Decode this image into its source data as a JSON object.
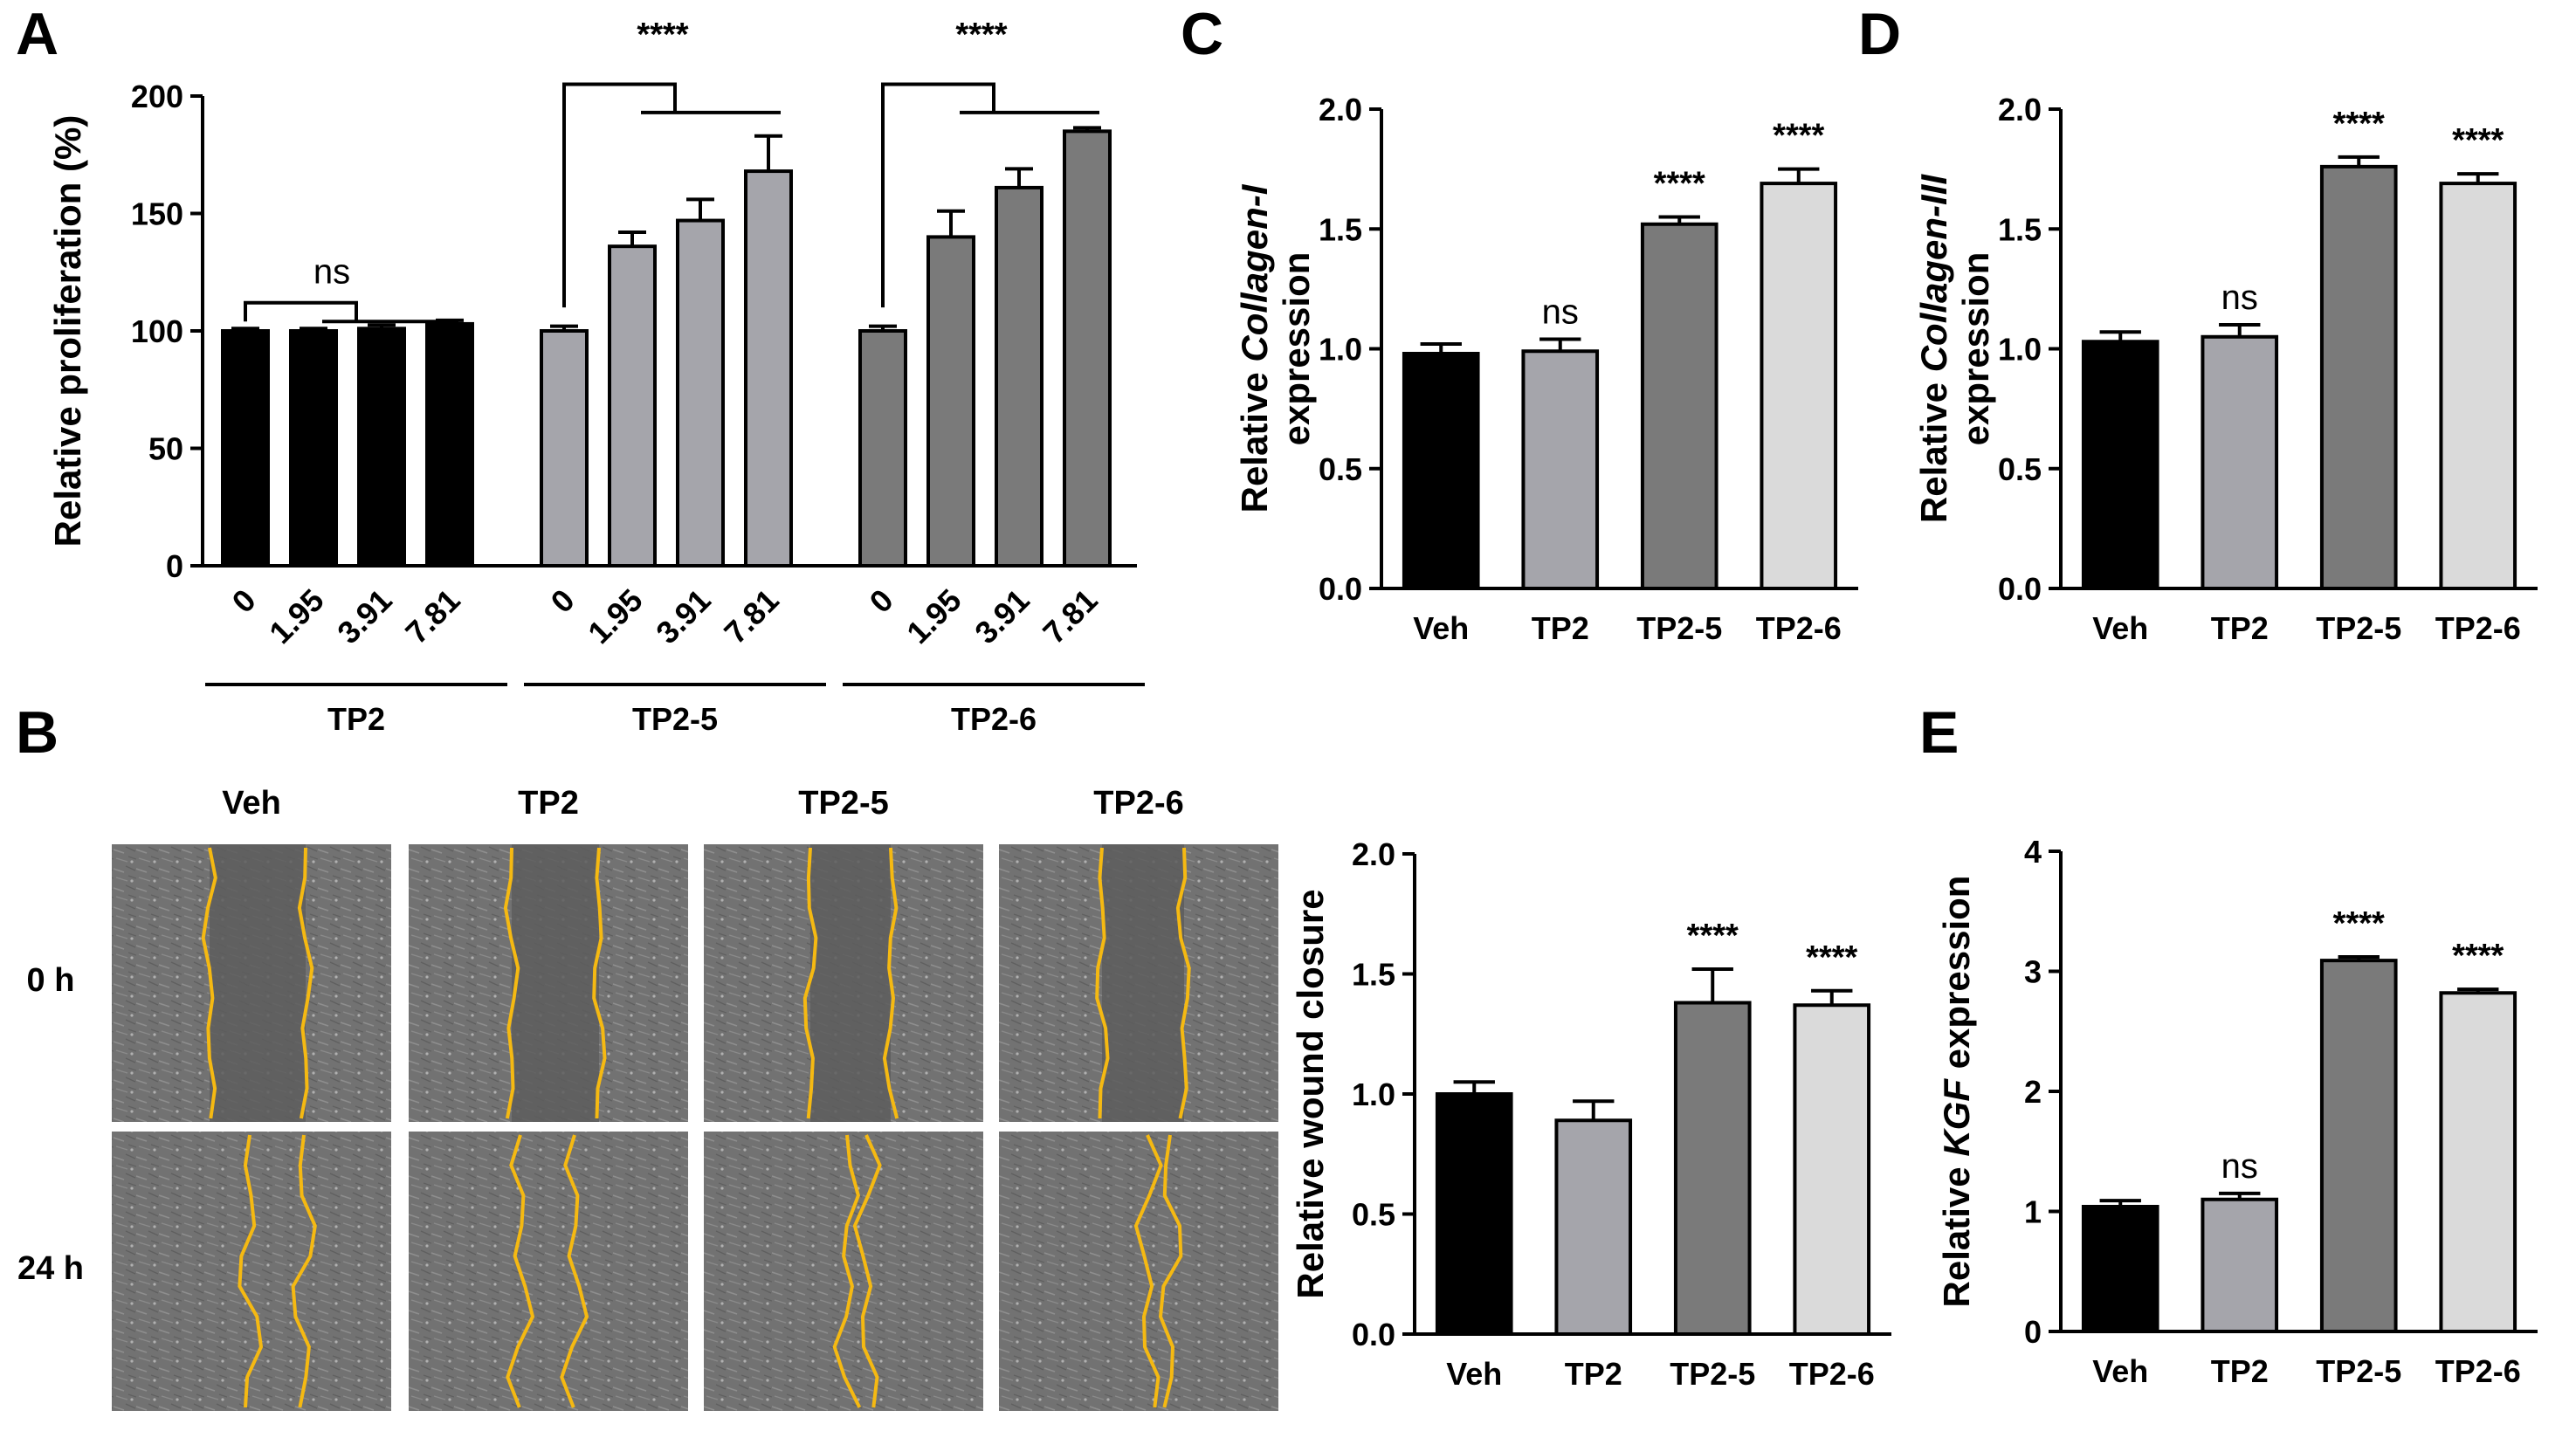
{
  "colors": {
    "black": "#000000",
    "gray_light": "#a5a5ab",
    "gray_dark": "#7a7a7a",
    "gray_pale": "#dadada",
    "wound_line": "#f5b912",
    "photo_bg": "#6f6f6f"
  },
  "chart_data": [
    {
      "panel": "A",
      "type": "bar",
      "ylabel": "Relative proliferation (%)",
      "ylim": [
        0,
        200
      ],
      "yticks": [
        "0",
        "50",
        "100",
        "150",
        "200"
      ],
      "groups": [
        {
          "name": "TP2",
          "categories": [
            "0",
            "1.95",
            "3.91",
            "7.81"
          ],
          "values": [
            100,
            100,
            101,
            103
          ],
          "errors": [
            1,
            1,
            1.5,
            1.5
          ],
          "significance": "ns"
        },
        {
          "name": "TP2-5",
          "categories": [
            "0",
            "1.95",
            "3.91",
            "7.81"
          ],
          "values": [
            100,
            136,
            147,
            168
          ],
          "errors": [
            2,
            6,
            9,
            15
          ],
          "significance": "****"
        },
        {
          "name": "TP2-6",
          "categories": [
            "0",
            "1.95",
            "3.91",
            "7.81"
          ],
          "values": [
            100,
            140,
            161,
            185
          ],
          "errors": [
            2,
            11,
            8,
            1.5
          ],
          "significance": "****"
        }
      ]
    },
    {
      "panel": "C",
      "type": "bar",
      "ylabel_parts": [
        "Relative ",
        "Collagen-I",
        "expression"
      ],
      "ylim": [
        0,
        2.0
      ],
      "yticks": [
        "0.0",
        "0.5",
        "1.0",
        "1.5",
        "2.0"
      ],
      "categories": [
        "Veh",
        "TP2",
        "TP2-5",
        "TP2-6"
      ],
      "values": [
        0.98,
        0.99,
        1.52,
        1.69
      ],
      "errors": [
        0.04,
        0.05,
        0.03,
        0.06
      ],
      "significance": [
        "",
        "ns",
        "****",
        "****"
      ]
    },
    {
      "panel": "D",
      "type": "bar",
      "ylabel_parts": [
        "Relative ",
        "Collagen-III",
        "expression"
      ],
      "ylim": [
        0,
        2.0
      ],
      "yticks": [
        "0.0",
        "0.5",
        "1.0",
        "1.5",
        "2.0"
      ],
      "categories": [
        "Veh",
        "TP2",
        "TP2-5",
        "TP2-6"
      ],
      "values": [
        1.03,
        1.05,
        1.76,
        1.69
      ],
      "errors": [
        0.04,
        0.05,
        0.04,
        0.04
      ],
      "significance": [
        "",
        "ns",
        "****",
        "****"
      ]
    },
    {
      "panel": "B",
      "type": "bar",
      "ylabel": "Relative wound closure",
      "ylim": [
        0,
        2.0
      ],
      "yticks": [
        "0.0",
        "0.5",
        "1.0",
        "1.5",
        "2.0"
      ],
      "categories": [
        "Veh",
        "TP2",
        "TP2-5",
        "TP2-6"
      ],
      "values": [
        1.0,
        0.89,
        1.38,
        1.37
      ],
      "errors": [
        0.05,
        0.08,
        0.14,
        0.06
      ],
      "significance": [
        "",
        "",
        "****",
        "****"
      ]
    },
    {
      "panel": "E",
      "type": "bar",
      "ylabel_parts": [
        "Relative ",
        "KGF",
        " expression"
      ],
      "ylim": [
        0,
        4
      ],
      "yticks": [
        "0",
        "1",
        "2",
        "3",
        "4"
      ],
      "categories": [
        "Veh",
        "TP2",
        "TP2-5",
        "TP2-6"
      ],
      "values": [
        1.04,
        1.1,
        3.09,
        2.82
      ],
      "errors": [
        0.05,
        0.05,
        0.03,
        0.03
      ],
      "significance": [
        "",
        "ns",
        "****",
        "****"
      ]
    }
  ],
  "photo_panel": {
    "letter": "B",
    "columns": [
      "Veh",
      "TP2",
      "TP2-5",
      "TP2-6"
    ],
    "rows": [
      "0 h",
      "24 h"
    ]
  },
  "letters": [
    "A",
    "C",
    "D",
    "B",
    "E"
  ]
}
